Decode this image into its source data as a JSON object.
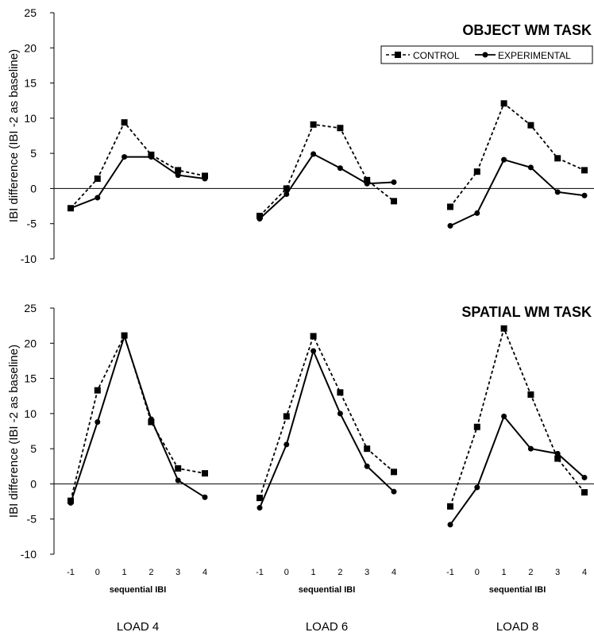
{
  "chart_data": [
    {
      "type": "line",
      "title": "OBJECT WM TASK",
      "ylabel": "IBI difference (IBI -2 as baseline)",
      "ylim": [
        -10,
        25
      ],
      "yticks": [
        "25",
        "20",
        "15",
        "10",
        "5",
        "0",
        "-5",
        "-10"
      ],
      "legend": {
        "position": "top-right",
        "entries": [
          "CONTROL",
          "EXPERIMENTAL"
        ]
      },
      "series": [
        {
          "name": "CONTROL",
          "style": "dashed-square",
          "groups": [
            [
              -2.8,
              1.4,
              9.4,
              4.8,
              2.6,
              1.8
            ],
            [
              -3.9,
              0.0,
              9.1,
              8.6,
              1.2,
              -1.8
            ],
            [
              -2.6,
              2.4,
              12.1,
              9.0,
              4.3,
              2.6
            ]
          ]
        },
        {
          "name": "EXPERIMENTAL",
          "style": "solid-circle",
          "groups": [
            [
              -2.8,
              -1.3,
              4.5,
              4.5,
              1.9,
              1.4
            ],
            [
              -4.3,
              -0.8,
              4.9,
              2.9,
              0.7,
              0.9
            ],
            [
              -5.3,
              -3.5,
              4.1,
              3.0,
              -0.5,
              -1.0
            ]
          ]
        }
      ]
    },
    {
      "type": "line",
      "title": "SPATIAL WM TASK",
      "ylabel": "IBI difference (IBI -2 as baseline)",
      "ylim": [
        -10,
        25
      ],
      "yticks": [
        "25",
        "20",
        "15",
        "10",
        "5",
        "0",
        "-5",
        "-10"
      ],
      "xticks": [
        "-1",
        "0",
        "1",
        "2",
        "3",
        "4"
      ],
      "xlabel": "sequential IBI",
      "series": [
        {
          "name": "CONTROL",
          "style": "dashed-square",
          "groups": [
            [
              -2.4,
              13.3,
              21.1,
              8.8,
              2.2,
              1.5
            ],
            [
              -2.0,
              9.6,
              21.0,
              13.0,
              5.0,
              1.7
            ],
            [
              -3.2,
              8.1,
              22.1,
              12.7,
              3.6,
              -1.2
            ]
          ]
        },
        {
          "name": "EXPERIMENTAL",
          "style": "solid-circle",
          "groups": [
            [
              -2.7,
              8.8,
              21.0,
              9.2,
              0.5,
              -1.9
            ],
            [
              -3.4,
              5.6,
              18.9,
              10.0,
              2.5,
              -1.1
            ],
            [
              -5.8,
              -0.5,
              9.6,
              5.0,
              4.3,
              0.9
            ]
          ]
        }
      ]
    }
  ],
  "group_labels": [
    "LOAD 4",
    "LOAD 6",
    "LOAD 8"
  ]
}
